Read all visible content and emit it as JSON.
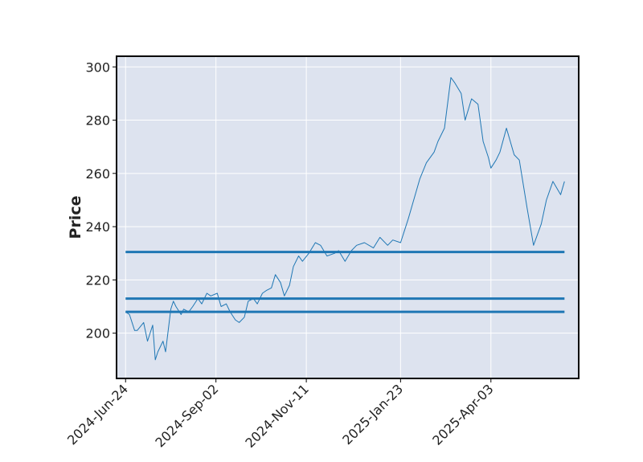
{
  "chart_data": {
    "type": "line",
    "ylabel": "Price",
    "xlabel": "",
    "title": "",
    "ylim": [
      183,
      304
    ],
    "xlim": [
      "2024-06-17",
      "2025-06-10"
    ],
    "grid": true,
    "x_ticks": [
      {
        "date": "2024-06-24",
        "label": "2024-Jun-24"
      },
      {
        "date": "2024-09-02",
        "label": "2024-Sep-02"
      },
      {
        "date": "2024-11-11",
        "label": "2024-Nov-11"
      },
      {
        "date": "2025-01-23",
        "label": "2025-Jan-23"
      },
      {
        "date": "2025-04-03",
        "label": "2025-Apr-03"
      }
    ],
    "y_ticks": [
      200,
      220,
      240,
      260,
      280,
      300
    ],
    "series": [
      {
        "color": "#1f77b4",
        "x": [
          "2024-06-24",
          "2024-06-27",
          "2024-07-01",
          "2024-07-03",
          "2024-07-08",
          "2024-07-11",
          "2024-07-15",
          "2024-07-17",
          "2024-07-19",
          "2024-07-23",
          "2024-07-25",
          "2024-07-29",
          "2024-07-31",
          "2024-08-02",
          "2024-08-06",
          "2024-08-08",
          "2024-08-12",
          "2024-08-15",
          "2024-08-19",
          "2024-08-22",
          "2024-08-26",
          "2024-08-29",
          "2024-09-03",
          "2024-09-06",
          "2024-09-10",
          "2024-09-13",
          "2024-09-17",
          "2024-09-20",
          "2024-09-24",
          "2024-09-27",
          "2024-10-01",
          "2024-10-04",
          "2024-10-08",
          "2024-10-11",
          "2024-10-15",
          "2024-10-18",
          "2024-10-22",
          "2024-10-25",
          "2024-10-29",
          "2024-11-01",
          "2024-11-05",
          "2024-11-08",
          "2024-11-13",
          "2024-11-18",
          "2024-11-22",
          "2024-11-27",
          "2024-12-03",
          "2024-12-06",
          "2024-12-11",
          "2024-12-16",
          "2024-12-20",
          "2024-12-26",
          "2025-01-02",
          "2025-01-07",
          "2025-01-13",
          "2025-01-17",
          "2025-01-23",
          "2025-01-29",
          "2025-02-04",
          "2025-02-07",
          "2025-02-12",
          "2025-02-18",
          "2025-02-21",
          "2025-02-26",
          "2025-03-03",
          "2025-03-06",
          "2025-03-11",
          "2025-03-14",
          "2025-03-19",
          "2025-03-24",
          "2025-03-28",
          "2025-04-01",
          "2025-04-03",
          "2025-04-07",
          "2025-04-10",
          "2025-04-15",
          "2025-04-21",
          "2025-04-25",
          "2025-05-01",
          "2025-05-06",
          "2025-05-12",
          "2025-05-16",
          "2025-05-21",
          "2025-05-27",
          "2025-05-30"
        ],
        "values": [
          208,
          207,
          201,
          201,
          204,
          197,
          203,
          190,
          193,
          197,
          193,
          209,
          212,
          210,
          207,
          209,
          208,
          210,
          213,
          211,
          215,
          214,
          215,
          210,
          211,
          208,
          205,
          204,
          206,
          212,
          213,
          211,
          215,
          216,
          217,
          222,
          219,
          214,
          218,
          225,
          229,
          227,
          230,
          234,
          233,
          229,
          230,
          231,
          227,
          231,
          233,
          234,
          232,
          236,
          233,
          235,
          234,
          243,
          253,
          258,
          264,
          268,
          272,
          277,
          296,
          294,
          290,
          280,
          288,
          286,
          272,
          266,
          262,
          265,
          268,
          277,
          267,
          265,
          247,
          233,
          241,
          250,
          257,
          252,
          257
        ]
      }
    ],
    "hlines": [
      {
        "y": 230.5,
        "color": "#1f77b4"
      },
      {
        "y": 213,
        "color": "#1f77b4"
      },
      {
        "y": 208,
        "color": "#1f77b4"
      }
    ]
  }
}
